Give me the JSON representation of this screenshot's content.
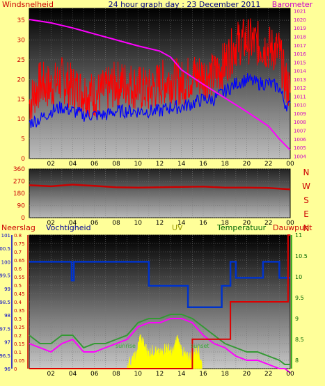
{
  "title": "24 hour graph day : 23 December 2011",
  "panel1": {
    "left_label": "Windsnelheid",
    "right_label": "Barometer",
    "left_ticks": [
      "35",
      "30",
      "25",
      "20",
      "15",
      "10",
      "5",
      "0"
    ],
    "right_ticks": [
      "1021",
      "1020",
      "1019",
      "1018",
      "1017",
      "1016",
      "1015",
      "1014",
      "1013",
      "1012",
      "1011",
      "1010",
      "1009",
      "1008",
      "1007",
      "1006",
      "1005",
      "1004"
    ]
  },
  "panel2": {
    "left_ticks": [
      "360",
      "270",
      "180",
      "90",
      "0"
    ],
    "compass": [
      "N",
      "W",
      "S",
      "E",
      "N"
    ]
  },
  "panel3": {
    "labels": {
      "rain": "Neerslag",
      "humidity": "Vochtigheid",
      "uv": "UV",
      "temperature": "Temperatuur",
      "dewpoint": "Dauwpunt"
    },
    "rain_ticks": [
      "101",
      "100.5",
      "100",
      "99.5",
      "99",
      "98.5",
      "98",
      "97.5",
      "97",
      "96.5",
      "96"
    ],
    "uv_ticks": [
      "0.8",
      "0.75",
      "0.7",
      "0.65",
      "0.6",
      "0.55",
      "0.5",
      "0.45",
      "0.4",
      "0.35",
      "0.3",
      "0.25",
      "0.2",
      "0.15",
      "0.1",
      "0.05",
      "0"
    ],
    "temp_ticks": [
      "11",
      "10.5",
      "10",
      "9.5",
      "9",
      "8.5",
      "8"
    ],
    "sunrise_label": "sunrise",
    "sunset_label": "sunset"
  },
  "x_ticks": [
    "02",
    "04",
    "06",
    "08",
    "10",
    "12",
    "14",
    "16",
    "18",
    "20",
    "22",
    "00"
  ],
  "colors": {
    "background": "#ffff99",
    "wind": "#ff0000",
    "gust_avg": "#0000ff",
    "barometer": "#ff00ff",
    "direction": "#cc0000",
    "uv": "#ffff00",
    "temperature": "#339933",
    "dewpoint": "#ff00ff",
    "humidity": "#0033cc",
    "rain": "#dd0000"
  },
  "chart_data": [
    {
      "type": "line",
      "x_unit": "hour",
      "series": [
        {
          "key": "wind_gust",
          "axis": "left",
          "x": [
            0,
            1,
            2,
            3,
            4,
            5,
            6,
            7,
            8,
            9,
            10,
            11,
            12,
            13,
            14,
            15,
            16,
            17,
            18,
            19,
            20,
            21,
            22,
            23,
            23.5,
            24
          ],
          "y": [
            14,
            19,
            18,
            20,
            18,
            17,
            16,
            17,
            19,
            19,
            18,
            17,
            19,
            20,
            19,
            21,
            21,
            21,
            24,
            29,
            30,
            29,
            28,
            27,
            20,
            17
          ]
        },
        {
          "key": "wind_avg",
          "axis": "left",
          "x": [
            0,
            1,
            2,
            3,
            4,
            5,
            6,
            7,
            8,
            9,
            10,
            11,
            12,
            13,
            14,
            15,
            16,
            17,
            18,
            19,
            20,
            21,
            22,
            23,
            23.5,
            24
          ],
          "y": [
            9,
            10,
            12,
            13,
            12,
            11,
            11,
            11,
            12,
            12,
            12,
            12,
            12,
            13,
            13,
            14,
            15,
            15,
            17,
            19,
            20,
            19,
            19,
            18,
            14,
            13
          ]
        },
        {
          "key": "barometer",
          "axis": "right",
          "x": [
            0,
            2,
            4,
            6,
            8,
            10,
            12,
            13,
            14,
            16,
            18,
            20,
            22,
            23,
            24
          ],
          "y": [
            1020.0,
            1019.6,
            1019.0,
            1018.3,
            1017.6,
            1016.9,
            1016.3,
            1015.6,
            1014.1,
            1012.4,
            1010.8,
            1009.2,
            1007.5,
            1006.0,
            1004.7
          ]
        }
      ],
      "ylim_left": [
        0,
        38
      ],
      "ylim_right": [
        1003.7,
        1021.3
      ]
    },
    {
      "type": "line",
      "x_unit": "hour",
      "series": [
        {
          "key": "wind_direction",
          "x": [
            0,
            2,
            4,
            6,
            8,
            10,
            12,
            14,
            16,
            18,
            20,
            22,
            24
          ],
          "y": [
            240,
            232,
            245,
            235,
            225,
            222,
            225,
            228,
            230,
            222,
            222,
            220,
            210
          ]
        }
      ],
      "ylim": [
        0,
        360
      ]
    },
    {
      "type": "line",
      "x_unit": "hour",
      "series": [
        {
          "key": "humidity",
          "axis": "rain",
          "x": [
            0,
            3.9,
            3.9,
            4.1,
            4.1,
            11.0,
            11.0,
            11.3,
            11.3,
            14.6,
            14.6,
            17.7,
            17.7,
            18.5,
            18.5,
            19.0,
            19.0,
            21.5,
            21.5,
            23.0,
            23.0,
            24
          ],
          "y": [
            100,
            100,
            99.3,
            99.3,
            100,
            100,
            99.1,
            99.1,
            99.1,
            99.1,
            98.3,
            98.3,
            99.1,
            99.1,
            100,
            100,
            99.4,
            99.4,
            100,
            100,
            99.4,
            99.4
          ]
        },
        {
          "key": "temperature",
          "axis": "temp",
          "x": [
            0,
            1,
            2,
            3,
            4,
            5,
            6,
            7,
            8,
            9,
            10,
            11,
            12,
            13,
            14,
            15,
            16,
            17,
            18,
            19,
            20,
            21,
            22,
            23,
            23.5,
            24
          ],
          "y": [
            8.6,
            8.4,
            8.4,
            8.6,
            8.6,
            8.3,
            8.4,
            8.4,
            8.5,
            8.6,
            8.9,
            9.0,
            9.0,
            9.1,
            9.1,
            9.0,
            8.8,
            8.6,
            8.4,
            8.3,
            8.2,
            8.2,
            8.1,
            8.0,
            7.9,
            7.9
          ]
        },
        {
          "key": "dewpoint",
          "axis": "temp",
          "x": [
            0,
            1,
            2,
            3,
            4,
            5,
            6,
            7,
            8,
            9,
            10,
            11,
            12,
            13,
            14,
            15,
            16,
            17,
            18,
            19,
            20,
            21,
            22,
            23,
            23.5,
            24
          ],
          "y": [
            8.4,
            8.3,
            8.2,
            8.4,
            8.5,
            8.2,
            8.2,
            8.3,
            8.4,
            8.5,
            8.8,
            8.9,
            8.9,
            9.0,
            9.0,
            8.9,
            8.6,
            8.4,
            8.3,
            8.1,
            8.0,
            8.0,
            7.9,
            7.8,
            7.8,
            7.7
          ]
        },
        {
          "key": "uv",
          "axis": "uv",
          "x": [
            9.0,
            9.8,
            10.2,
            10.6,
            11.0,
            11.5,
            12.0,
            12.6,
            13.2,
            13.6,
            14.0,
            14.5,
            15.0,
            15.5,
            15.9
          ],
          "y": [
            0.02,
            0.07,
            0.19,
            0.13,
            0.09,
            0.11,
            0.08,
            0.13,
            0.09,
            0.18,
            0.11,
            0.06,
            0.08,
            0.12,
            0.02
          ]
        },
        {
          "key": "rain",
          "axis": "rain",
          "x": [
            0,
            15.0,
            15.0,
            18.5,
            18.5,
            23.8,
            23.8,
            24
          ],
          "y": [
            96.0,
            96.0,
            97.1,
            97.1,
            98.5,
            98.5,
            101,
            101
          ]
        }
      ],
      "ylim_rain": [
        96,
        101
      ],
      "ylim_uv": [
        0,
        0.8
      ],
      "ylim_temp": [
        7.8,
        11
      ]
    }
  ]
}
